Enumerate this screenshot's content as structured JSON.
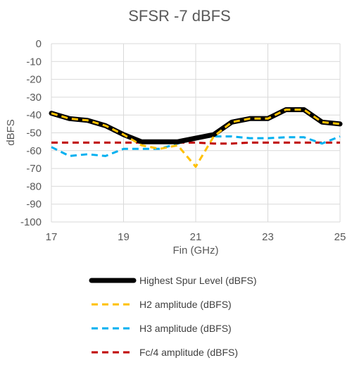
{
  "chart_data": {
    "type": "line",
    "title": "SFSR -7 dBFS",
    "xlabel": "Fin (GHz)",
    "ylabel": "dBFS",
    "xlim": [
      17,
      25
    ],
    "ylim": [
      -100,
      0
    ],
    "x_ticks": [
      17,
      19,
      21,
      23,
      25
    ],
    "y_ticks": [
      0,
      -10,
      -20,
      -30,
      -40,
      -50,
      -60,
      -70,
      -80,
      -90,
      -100
    ],
    "grid": true,
    "legend_position": "bottom",
    "x": [
      17,
      17.5,
      18,
      18.5,
      19,
      19.5,
      20,
      20.5,
      21,
      21.5,
      22,
      22.5,
      23,
      23.5,
      24,
      24.5,
      25
    ],
    "series": [
      {
        "name": "Highest Spur Level (dBFS)",
        "color": "#000000",
        "dash": "solid",
        "values": [
          -39,
          -42,
          -43,
          -46,
          -51,
          -55,
          -55,
          -55,
          -53,
          -51,
          -44,
          -42,
          -42,
          -37,
          -37,
          -44,
          -45
        ]
      },
      {
        "name": "H2 amplitude (dBFS)",
        "color": "#FFC000",
        "dash": "dashed",
        "values": [
          -39,
          -42,
          -43,
          -46,
          -51,
          -57,
          -59,
          -57,
          -69,
          -52,
          -44,
          -42,
          -42,
          -37,
          -37,
          -44,
          -45
        ]
      },
      {
        "name": "H3 amplitude (dBFS)",
        "color": "#00B0F0",
        "dash": "dashed",
        "values": [
          -58,
          -63,
          -62,
          -63,
          -59,
          -59,
          -59,
          -56,
          -53,
          -52,
          -52,
          -53,
          -53,
          -52.5,
          -52.5,
          -56,
          -52
        ]
      },
      {
        "name": "Fc/4 amplitude (dBFS)",
        "color": "#C00000",
        "dash": "dashed",
        "values": [
          -55.5,
          -55.5,
          -55.5,
          -55.5,
          -55.5,
          -55.5,
          -55.5,
          -55.5,
          -55.5,
          -56,
          -56,
          -55.5,
          -55.5,
          -55.5,
          -55.5,
          -55.5,
          -55.5
        ]
      }
    ]
  }
}
